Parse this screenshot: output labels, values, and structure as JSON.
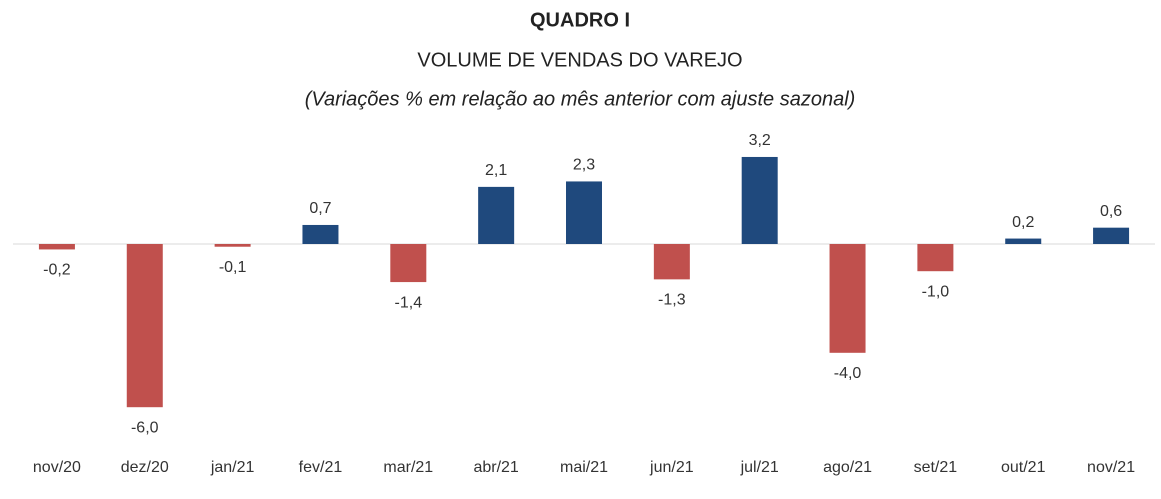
{
  "chart_data": {
    "type": "bar",
    "title": "QUADRO I",
    "subtitle": "VOLUME DE VENDAS DO VAREJO",
    "note": "(Variações % em relação ao mês anterior com ajuste sazonal)",
    "categories": [
      "nov/20",
      "dez/20",
      "jan/21",
      "fev/21",
      "mar/21",
      "abr/21",
      "mai/21",
      "jun/21",
      "jul/21",
      "ago/21",
      "set/21",
      "out/21",
      "nov/21"
    ],
    "values": [
      -0.2,
      -6.0,
      -0.1,
      0.7,
      -1.4,
      2.1,
      2.3,
      -1.3,
      3.2,
      -4.0,
      -1.0,
      0.2,
      0.6
    ],
    "value_labels": [
      "-0,2",
      "-6,0",
      "-0,1",
      "0,7",
      "-1,4",
      "2,1",
      "2,3",
      "-1,3",
      "3,2",
      "-4,0",
      "-1,0",
      "0,2",
      "0,6"
    ],
    "color": "#1f497d",
    "negative_color": "#c0504d"
  }
}
